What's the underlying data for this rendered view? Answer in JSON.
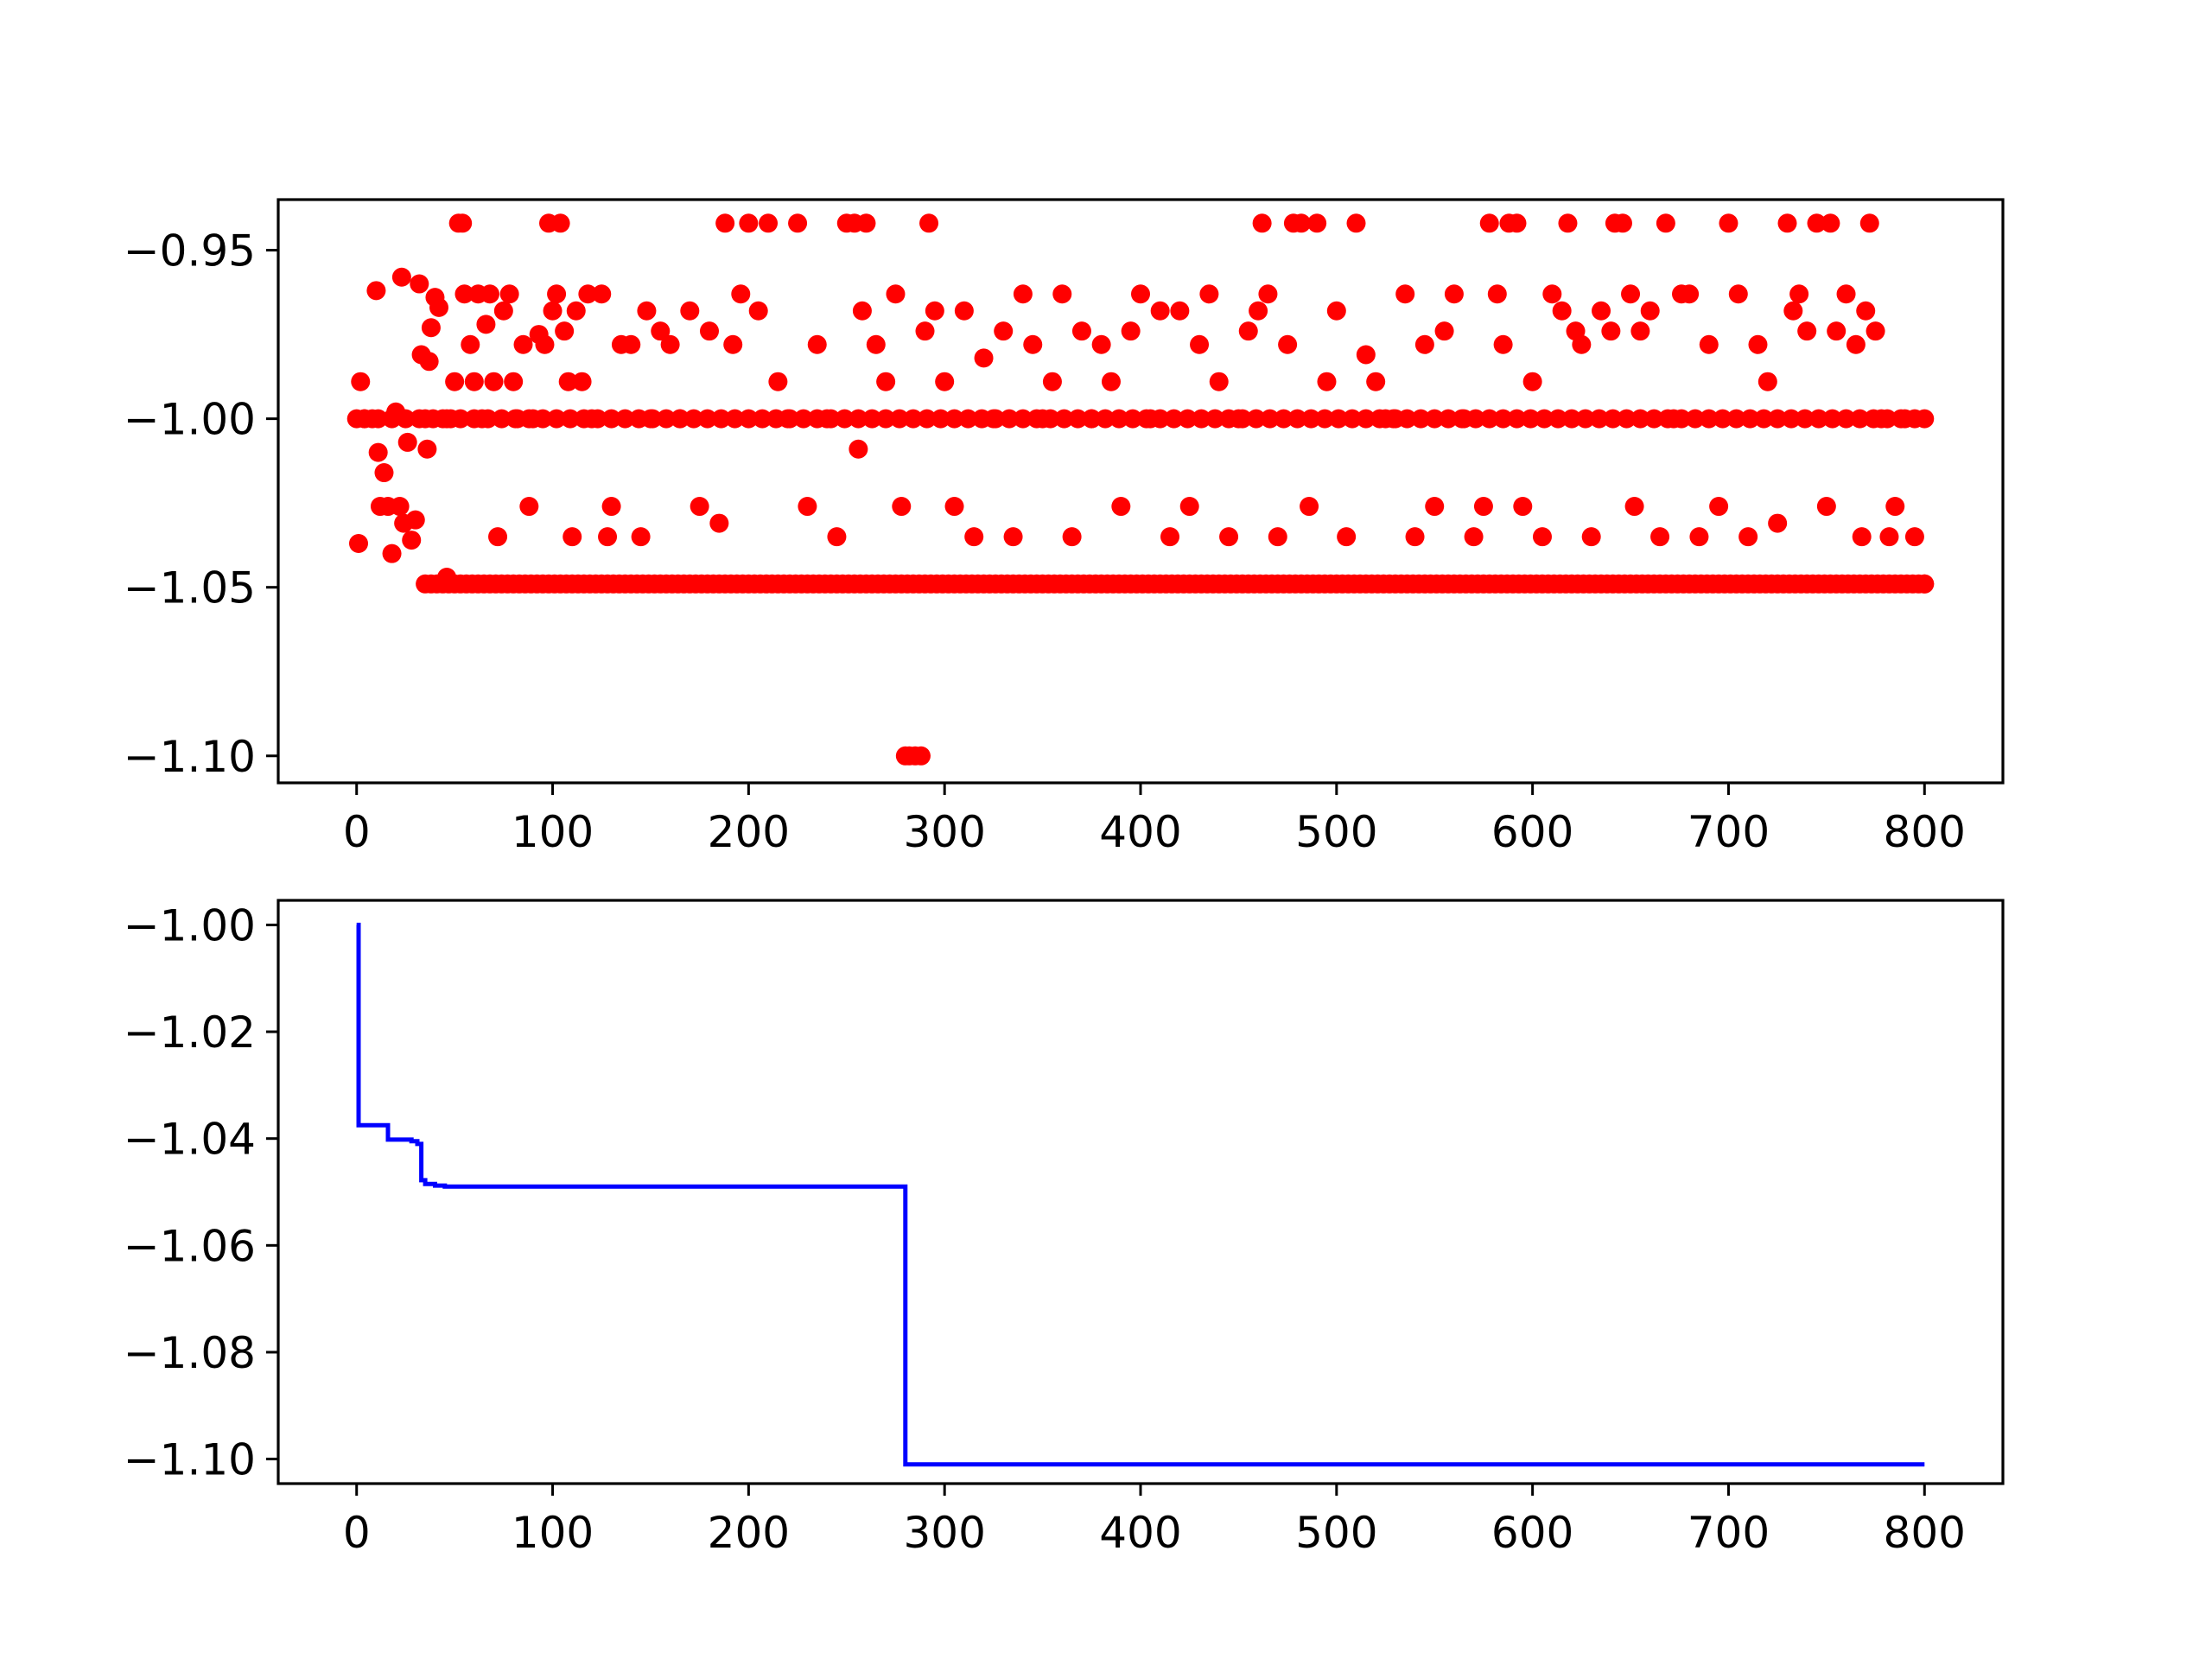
{
  "chart_data": [
    {
      "type": "scatter",
      "title": "",
      "xlabel": "",
      "ylabel": "",
      "xlim": [
        -40,
        840
      ],
      "ylim": [
        -1.108,
        -0.935
      ],
      "xticks": [
        0,
        100,
        200,
        300,
        400,
        500,
        600,
        700,
        800
      ],
      "xtick_labels": [
        "0",
        "100",
        "200",
        "300",
        "400",
        "500",
        "600",
        "700",
        "800"
      ],
      "yticks": [
        -0.95,
        -1.0,
        -1.05,
        -1.1
      ],
      "ytick_labels": [
        "−0.95",
        "−1.00",
        "−1.05",
        "−1.10"
      ],
      "grid": false,
      "legend": "none",
      "marker_color": "#ff0000",
      "n_points": 801,
      "series": [
        {
          "note": "evaluated objective per iteration (dense sample, estimated)",
          "levels": [
            -0.942,
            -0.958,
            -0.963,
            -0.968,
            -0.974,
            -0.978,
            -0.989,
            -1.0,
            -1.026,
            -1.031,
            -1.035,
            -1.048,
            -1.049,
            -1.1
          ],
          "points": [
            [
              0,
              -1.0
            ],
            [
              1,
              -1.037
            ],
            [
              2,
              -0.989
            ],
            [
              4,
              -1.0
            ],
            [
              8,
              -1.0
            ],
            [
              10,
              -0.962
            ],
            [
              11,
              -1.01
            ],
            [
              12,
              -1.026
            ],
            [
              14,
              -1.016
            ],
            [
              16,
              -1.026
            ],
            [
              18,
              -1.04
            ],
            [
              20,
              -0.998
            ],
            [
              22,
              -1.026
            ],
            [
              23,
              -0.958
            ],
            [
              24,
              -1.031
            ],
            [
              26,
              -1.007
            ],
            [
              28,
              -1.036
            ],
            [
              30,
              -1.03
            ],
            [
              32,
              -0.96
            ],
            [
              33,
              -0.981
            ],
            [
              35,
              -1.0
            ],
            [
              36,
              -1.009
            ],
            [
              37,
              -0.983
            ],
            [
              38,
              -0.973
            ],
            [
              40,
              -0.964
            ],
            [
              42,
              -0.967
            ],
            [
              44,
              -1.0
            ],
            [
              46,
              -1.047
            ],
            [
              48,
              -1.0
            ],
            [
              50,
              -0.989
            ],
            [
              52,
              -0.942
            ],
            [
              54,
              -0.942
            ],
            [
              55,
              -0.963
            ],
            [
              58,
              -0.978
            ],
            [
              60,
              -0.989
            ],
            [
              62,
              -0.963
            ],
            [
              64,
              -1.0
            ],
            [
              66,
              -0.972
            ],
            [
              68,
              -0.963
            ],
            [
              70,
              -0.989
            ],
            [
              72,
              -1.035
            ],
            [
              75,
              -0.968
            ],
            [
              78,
              -0.963
            ],
            [
              80,
              -0.989
            ],
            [
              82,
              -1.0
            ],
            [
              85,
              -0.978
            ],
            [
              88,
              -1.026
            ],
            [
              90,
              -1.0
            ],
            [
              93,
              -0.975
            ],
            [
              96,
              -0.978
            ],
            [
              98,
              -0.942
            ],
            [
              100,
              -0.968
            ],
            [
              102,
              -0.963
            ],
            [
              104,
              -0.942
            ],
            [
              106,
              -0.974
            ],
            [
              108,
              -0.989
            ],
            [
              110,
              -1.035
            ],
            [
              112,
              -0.968
            ],
            [
              115,
              -0.989
            ],
            [
              118,
              -0.963
            ],
            [
              120,
              -1.0
            ],
            [
              125,
              -0.963
            ],
            [
              128,
              -1.035
            ],
            [
              130,
              -1.026
            ],
            [
              135,
              -0.978
            ],
            [
              140,
              -0.978
            ],
            [
              145,
              -1.035
            ],
            [
              148,
              -0.968
            ],
            [
              150,
              -1.0
            ],
            [
              155,
              -0.974
            ],
            [
              160,
              -0.978
            ],
            [
              165,
              -1.0
            ],
            [
              170,
              -0.968
            ],
            [
              175,
              -1.026
            ],
            [
              180,
              -0.974
            ],
            [
              185,
              -1.031
            ],
            [
              188,
              -0.942
            ],
            [
              192,
              -0.978
            ],
            [
              196,
              -0.963
            ],
            [
              200,
              -0.942
            ],
            [
              205,
              -0.968
            ],
            [
              210,
              -0.942
            ],
            [
              215,
              -0.989
            ],
            [
              220,
              -1.0
            ],
            [
              225,
              -0.942
            ],
            [
              230,
              -1.026
            ],
            [
              235,
              -0.978
            ],
            [
              240,
              -1.0
            ],
            [
              245,
              -1.035
            ],
            [
              250,
              -0.942
            ],
            [
              254,
              -0.942
            ],
            [
              256,
              -1.009
            ],
            [
              258,
              -0.968
            ],
            [
              260,
              -0.942
            ],
            [
              265,
              -0.978
            ],
            [
              270,
              -0.989
            ],
            [
              275,
              -0.963
            ],
            [
              278,
              -1.026
            ],
            [
              280,
              -1.1
            ],
            [
              282,
              -1.1
            ],
            [
              285,
              -1.1
            ],
            [
              288,
              -1.1
            ],
            [
              290,
              -0.974
            ],
            [
              292,
              -0.942
            ],
            [
              295,
              -0.968
            ],
            [
              300,
              -0.989
            ],
            [
              305,
              -1.026
            ],
            [
              310,
              -0.968
            ],
            [
              315,
              -1.035
            ],
            [
              320,
              -0.982
            ],
            [
              325,
              -1.0
            ],
            [
              330,
              -0.974
            ],
            [
              335,
              -1.035
            ],
            [
              340,
              -0.963
            ],
            [
              345,
              -0.978
            ],
            [
              350,
              -1.0
            ],
            [
              355,
              -0.989
            ],
            [
              360,
              -0.963
            ],
            [
              365,
              -1.035
            ],
            [
              370,
              -0.974
            ],
            [
              375,
              -1.0
            ],
            [
              380,
              -0.978
            ],
            [
              385,
              -0.989
            ],
            [
              390,
              -1.026
            ],
            [
              395,
              -0.974
            ],
            [
              400,
              -0.963
            ],
            [
              405,
              -1.0
            ],
            [
              410,
              -0.968
            ],
            [
              415,
              -1.035
            ],
            [
              420,
              -0.968
            ],
            [
              425,
              -1.026
            ],
            [
              430,
              -0.978
            ],
            [
              435,
              -0.963
            ],
            [
              440,
              -0.989
            ],
            [
              445,
              -1.035
            ],
            [
              450,
              -1.0
            ],
            [
              455,
              -0.974
            ],
            [
              460,
              -0.968
            ],
            [
              462,
              -0.942
            ],
            [
              465,
              -0.963
            ],
            [
              470,
              -1.035
            ],
            [
              475,
              -0.978
            ],
            [
              478,
              -0.942
            ],
            [
              482,
              -0.942
            ],
            [
              486,
              -1.026
            ],
            [
              490,
              -0.942
            ],
            [
              495,
              -0.989
            ],
            [
              500,
              -0.968
            ],
            [
              505,
              -1.035
            ],
            [
              510,
              -0.942
            ],
            [
              515,
              -0.981
            ],
            [
              520,
              -0.989
            ],
            [
              525,
              -1.0
            ],
            [
              530,
              -1.0
            ],
            [
              535,
              -0.963
            ],
            [
              540,
              -1.035
            ],
            [
              545,
              -0.978
            ],
            [
              550,
              -1.026
            ],
            [
              555,
              -0.974
            ],
            [
              560,
              -0.963
            ],
            [
              565,
              -1.0
            ],
            [
              570,
              -1.035
            ],
            [
              575,
              -1.026
            ],
            [
              578,
              -0.942
            ],
            [
              582,
              -0.963
            ],
            [
              585,
              -0.978
            ],
            [
              588,
              -0.942
            ],
            [
              592,
              -0.942
            ],
            [
              595,
              -1.026
            ],
            [
              600,
              -0.989
            ],
            [
              605,
              -1.035
            ],
            [
              610,
              -0.963
            ],
            [
              615,
              -0.968
            ],
            [
              618,
              -0.942
            ],
            [
              622,
              -0.974
            ],
            [
              625,
              -0.978
            ],
            [
              630,
              -1.035
            ],
            [
              635,
              -0.968
            ],
            [
              640,
              -0.974
            ],
            [
              642,
              -0.942
            ],
            [
              646,
              -0.942
            ],
            [
              650,
              -0.963
            ],
            [
              652,
              -1.026
            ],
            [
              655,
              -0.974
            ],
            [
              660,
              -0.968
            ],
            [
              665,
              -1.035
            ],
            [
              668,
              -0.942
            ],
            [
              672,
              -1.0
            ],
            [
              676,
              -0.963
            ],
            [
              680,
              -0.963
            ],
            [
              685,
              -1.035
            ],
            [
              690,
              -0.978
            ],
            [
              695,
              -1.026
            ],
            [
              700,
              -0.942
            ],
            [
              705,
              -0.963
            ],
            [
              710,
              -1.035
            ],
            [
              715,
              -0.978
            ],
            [
              720,
              -0.989
            ],
            [
              725,
              -1.031
            ],
            [
              730,
              -0.942
            ],
            [
              733,
              -0.968
            ],
            [
              736,
              -0.963
            ],
            [
              740,
              -0.974
            ],
            [
              745,
              -0.942
            ],
            [
              750,
              -1.026
            ],
            [
              752,
              -0.942
            ],
            [
              755,
              -0.974
            ],
            [
              760,
              -0.963
            ],
            [
              765,
              -0.978
            ],
            [
              768,
              -1.035
            ],
            [
              770,
              -0.968
            ],
            [
              772,
              -0.942
            ],
            [
              775,
              -0.974
            ],
            [
              778,
              -1.0
            ],
            [
              782,
              -1.035
            ],
            [
              785,
              -1.026
            ],
            [
              790,
              -1.0
            ],
            [
              795,
              -1.035
            ],
            [
              800,
              -1.0
            ],
            [
              800,
              -1.049
            ]
          ]
        }
      ]
    },
    {
      "type": "line",
      "title": "",
      "xlabel": "",
      "ylabel": "",
      "xlim": [
        -40,
        840
      ],
      "ylim": [
        -1.1046,
        -0.9954
      ],
      "xticks": [
        0,
        100,
        200,
        300,
        400,
        500,
        600,
        700,
        800
      ],
      "xtick_labels": [
        "0",
        "100",
        "200",
        "300",
        "400",
        "500",
        "600",
        "700",
        "800"
      ],
      "yticks": [
        -1.0,
        -1.02,
        -1.04,
        -1.06,
        -1.08,
        -1.1
      ],
      "ytick_labels": [
        "−1.00",
        "−1.02",
        "−1.04",
        "−1.06",
        "−1.08",
        "−1.10"
      ],
      "grid": false,
      "legend": "none",
      "line_color": "#0000ff",
      "series": [
        {
          "note": "best-so-far objective (step function)",
          "x": [
            0,
            1,
            1,
            16,
            16,
            28,
            28,
            31,
            31,
            33,
            33,
            35,
            35,
            40,
            40,
            45,
            45,
            280,
            280,
            800
          ],
          "y": [
            -1.0,
            -1.0,
            -1.0375,
            -1.0375,
            -1.0402,
            -1.0402,
            -1.0405,
            -1.0405,
            -1.041,
            -1.041,
            -1.0478,
            -1.0478,
            -1.0485,
            -1.0485,
            -1.0488,
            -1.0488,
            -1.049,
            -1.049,
            -1.101,
            -1.101
          ]
        }
      ]
    }
  ]
}
